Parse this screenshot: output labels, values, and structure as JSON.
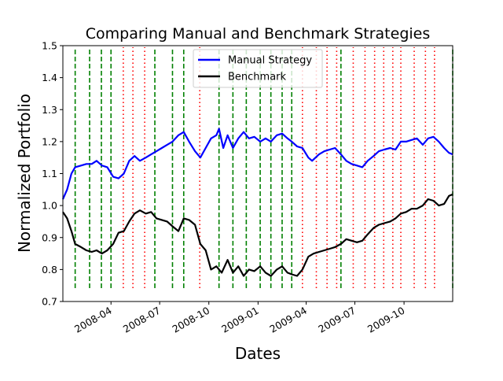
{
  "chart_data": {
    "type": "line",
    "title": "Comparing Manual and Benchmark Strategies",
    "xlabel": "Dates",
    "ylabel": "Normalized Portfolio",
    "ylim": [
      0.7,
      1.5
    ],
    "xlim": [
      "2008-01-02",
      "2009-12-31"
    ],
    "y_ticks": [
      "0.7",
      "0.8",
      "0.9",
      "1.0",
      "1.1",
      "1.2",
      "1.3",
      "1.4",
      "1.5"
    ],
    "x_ticks": [
      {
        "date": "2008-04-01",
        "label": "2008-04"
      },
      {
        "date": "2008-07-01",
        "label": "2008-07"
      },
      {
        "date": "2008-10-01",
        "label": "2008-10"
      },
      {
        "date": "2009-01-01",
        "label": "2009-01"
      },
      {
        "date": "2009-04-01",
        "label": "2009-04"
      },
      {
        "date": "2009-07-01",
        "label": "2009-07"
      },
      {
        "date": "2009-10-01",
        "label": "2009-10"
      }
    ],
    "legend": {
      "position": "top-center"
    },
    "series": [
      {
        "name": "Manual Strategy",
        "color": "#0000ff",
        "points": [
          [
            "2008-01-02",
            1.02
          ],
          [
            "2008-01-10",
            1.05
          ],
          [
            "2008-01-18",
            1.1
          ],
          [
            "2008-01-25",
            1.12
          ],
          [
            "2008-02-05",
            1.125
          ],
          [
            "2008-02-15",
            1.13
          ],
          [
            "2008-02-25",
            1.13
          ],
          [
            "2008-03-05",
            1.14
          ],
          [
            "2008-03-15",
            1.125
          ],
          [
            "2008-03-25",
            1.12
          ],
          [
            "2008-04-05",
            1.09
          ],
          [
            "2008-04-15",
            1.085
          ],
          [
            "2008-04-25",
            1.1
          ],
          [
            "2008-05-05",
            1.14
          ],
          [
            "2008-05-15",
            1.155
          ],
          [
            "2008-05-25",
            1.14
          ],
          [
            "2008-06-05",
            1.15
          ],
          [
            "2008-06-15",
            1.16
          ],
          [
            "2008-06-25",
            1.17
          ],
          [
            "2008-07-05",
            1.18
          ],
          [
            "2008-07-15",
            1.19
          ],
          [
            "2008-07-25",
            1.2
          ],
          [
            "2008-08-05",
            1.22
          ],
          [
            "2008-08-15",
            1.23
          ],
          [
            "2008-08-25",
            1.2
          ],
          [
            "2008-09-05",
            1.17
          ],
          [
            "2008-09-15",
            1.15
          ],
          [
            "2008-09-25",
            1.18
          ],
          [
            "2008-10-05",
            1.21
          ],
          [
            "2008-10-15",
            1.22
          ],
          [
            "2008-10-20",
            1.24
          ],
          [
            "2008-10-28",
            1.18
          ],
          [
            "2008-11-05",
            1.22
          ],
          [
            "2008-11-15",
            1.18
          ],
          [
            "2008-11-25",
            1.21
          ],
          [
            "2008-12-05",
            1.23
          ],
          [
            "2008-12-15",
            1.21
          ],
          [
            "2008-12-25",
            1.215
          ],
          [
            "2009-01-05",
            1.2
          ],
          [
            "2009-01-15",
            1.21
          ],
          [
            "2009-01-25",
            1.2
          ],
          [
            "2009-02-05",
            1.22
          ],
          [
            "2009-02-15",
            1.225
          ],
          [
            "2009-02-25",
            1.21
          ],
          [
            "2009-03-05",
            1.2
          ],
          [
            "2009-03-15",
            1.185
          ],
          [
            "2009-03-25",
            1.18
          ],
          [
            "2009-04-05",
            1.15
          ],
          [
            "2009-04-12",
            1.14
          ],
          [
            "2009-04-25",
            1.16
          ],
          [
            "2009-05-05",
            1.17
          ],
          [
            "2009-05-15",
            1.175
          ],
          [
            "2009-05-25",
            1.18
          ],
          [
            "2009-06-05",
            1.16
          ],
          [
            "2009-06-15",
            1.14
          ],
          [
            "2009-06-25",
            1.13
          ],
          [
            "2009-07-05",
            1.125
          ],
          [
            "2009-07-15",
            1.12
          ],
          [
            "2009-07-25",
            1.14
          ],
          [
            "2009-08-05",
            1.155
          ],
          [
            "2009-08-15",
            1.17
          ],
          [
            "2009-08-25",
            1.175
          ],
          [
            "2009-09-05",
            1.18
          ],
          [
            "2009-09-15",
            1.175
          ],
          [
            "2009-09-25",
            1.2
          ],
          [
            "2009-10-05",
            1.2
          ],
          [
            "2009-10-15",
            1.205
          ],
          [
            "2009-10-25",
            1.21
          ],
          [
            "2009-11-05",
            1.19
          ],
          [
            "2009-11-15",
            1.21
          ],
          [
            "2009-11-25",
            1.215
          ],
          [
            "2009-12-05",
            1.2
          ],
          [
            "2009-12-15",
            1.18
          ],
          [
            "2009-12-24",
            1.165
          ],
          [
            "2009-12-31",
            1.16
          ]
        ]
      },
      {
        "name": "Benchmark",
        "color": "#000000",
        "points": [
          [
            "2008-01-02",
            0.98
          ],
          [
            "2008-01-10",
            0.96
          ],
          [
            "2008-01-18",
            0.92
          ],
          [
            "2008-01-25",
            0.88
          ],
          [
            "2008-02-05",
            0.87
          ],
          [
            "2008-02-15",
            0.86
          ],
          [
            "2008-02-25",
            0.855
          ],
          [
            "2008-03-05",
            0.86
          ],
          [
            "2008-03-15",
            0.85
          ],
          [
            "2008-03-25",
            0.86
          ],
          [
            "2008-04-05",
            0.88
          ],
          [
            "2008-04-15",
            0.915
          ],
          [
            "2008-04-25",
            0.92
          ],
          [
            "2008-05-05",
            0.95
          ],
          [
            "2008-05-15",
            0.975
          ],
          [
            "2008-05-25",
            0.985
          ],
          [
            "2008-06-05",
            0.975
          ],
          [
            "2008-06-15",
            0.98
          ],
          [
            "2008-06-25",
            0.96
          ],
          [
            "2008-07-05",
            0.955
          ],
          [
            "2008-07-15",
            0.95
          ],
          [
            "2008-07-25",
            0.935
          ],
          [
            "2008-08-05",
            0.92
          ],
          [
            "2008-08-15",
            0.96
          ],
          [
            "2008-08-25",
            0.955
          ],
          [
            "2008-09-05",
            0.94
          ],
          [
            "2008-09-15",
            0.88
          ],
          [
            "2008-09-25",
            0.86
          ],
          [
            "2008-10-05",
            0.8
          ],
          [
            "2008-10-15",
            0.81
          ],
          [
            "2008-10-25",
            0.79
          ],
          [
            "2008-11-05",
            0.83
          ],
          [
            "2008-11-15",
            0.79
          ],
          [
            "2008-11-25",
            0.81
          ],
          [
            "2008-12-05",
            0.78
          ],
          [
            "2008-12-15",
            0.8
          ],
          [
            "2008-12-25",
            0.795
          ],
          [
            "2009-01-05",
            0.81
          ],
          [
            "2009-01-15",
            0.79
          ],
          [
            "2009-01-25",
            0.78
          ],
          [
            "2009-02-05",
            0.8
          ],
          [
            "2009-02-15",
            0.81
          ],
          [
            "2009-02-25",
            0.79
          ],
          [
            "2009-03-05",
            0.785
          ],
          [
            "2009-03-15",
            0.78
          ],
          [
            "2009-03-25",
            0.8
          ],
          [
            "2009-04-05",
            0.84
          ],
          [
            "2009-04-15",
            0.85
          ],
          [
            "2009-04-25",
            0.855
          ],
          [
            "2009-05-05",
            0.86
          ],
          [
            "2009-05-15",
            0.865
          ],
          [
            "2009-05-25",
            0.87
          ],
          [
            "2009-06-05",
            0.88
          ],
          [
            "2009-06-15",
            0.895
          ],
          [
            "2009-06-25",
            0.89
          ],
          [
            "2009-07-05",
            0.885
          ],
          [
            "2009-07-15",
            0.89
          ],
          [
            "2009-07-25",
            0.91
          ],
          [
            "2009-08-05",
            0.93
          ],
          [
            "2009-08-15",
            0.94
          ],
          [
            "2009-08-25",
            0.945
          ],
          [
            "2009-09-05",
            0.95
          ],
          [
            "2009-09-15",
            0.96
          ],
          [
            "2009-09-25",
            0.975
          ],
          [
            "2009-10-05",
            0.98
          ],
          [
            "2009-10-15",
            0.99
          ],
          [
            "2009-10-25",
            0.99
          ],
          [
            "2009-11-05",
            1.0
          ],
          [
            "2009-11-15",
            1.02
          ],
          [
            "2009-11-25",
            1.015
          ],
          [
            "2009-12-05",
            1.0
          ],
          [
            "2009-12-15",
            1.005
          ],
          [
            "2009-12-24",
            1.03
          ],
          [
            "2009-12-31",
            1.035
          ]
        ]
      }
    ],
    "vlines": {
      "long": {
        "color": "#008000",
        "style": "dashed",
        "dates": [
          "2008-01-25",
          "2008-02-21",
          "2008-03-14",
          "2008-04-01",
          "2008-06-22",
          "2008-07-25",
          "2008-08-15",
          "2008-10-20",
          "2008-11-15",
          "2008-12-10",
          "2009-01-05",
          "2009-01-25",
          "2009-02-15",
          "2009-03-05",
          "2009-06-05",
          "2009-12-31"
        ]
      },
      "short": {
        "color": "#ff0000",
        "style": "dotted",
        "dates": [
          "2008-04-24",
          "2008-05-12",
          "2008-06-03",
          "2008-09-14",
          "2009-03-25",
          "2009-04-20",
          "2009-05-10",
          "2009-05-28",
          "2009-06-28",
          "2009-07-20",
          "2009-08-07",
          "2009-08-24",
          "2009-09-10",
          "2009-09-25",
          "2009-10-20",
          "2009-11-10",
          "2009-11-27"
        ]
      }
    }
  }
}
